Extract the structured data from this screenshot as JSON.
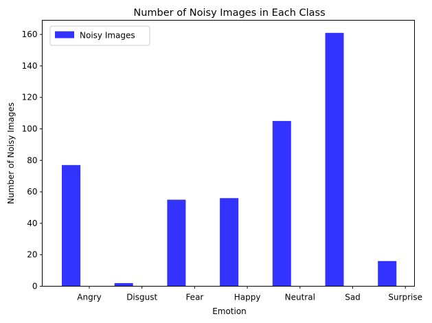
{
  "chart_data": {
    "type": "bar",
    "title": "Number of Noisy Images in Each Class",
    "xlabel": "Emotion",
    "ylabel": "Number of Noisy Images",
    "categories": [
      "Angry",
      "Disgust",
      "Fear",
      "Happy",
      "Neutral",
      "Sad",
      "Surprise"
    ],
    "series": [
      {
        "name": "Noisy Images",
        "values": [
          77,
          2,
          55,
          56,
          105,
          161,
          16
        ],
        "color": "#3333ff"
      }
    ],
    "ylim": [
      0,
      169
    ],
    "yticks": [
      0,
      20,
      40,
      60,
      80,
      100,
      120,
      140,
      160
    ],
    "grid": false,
    "legend": "top-left"
  }
}
